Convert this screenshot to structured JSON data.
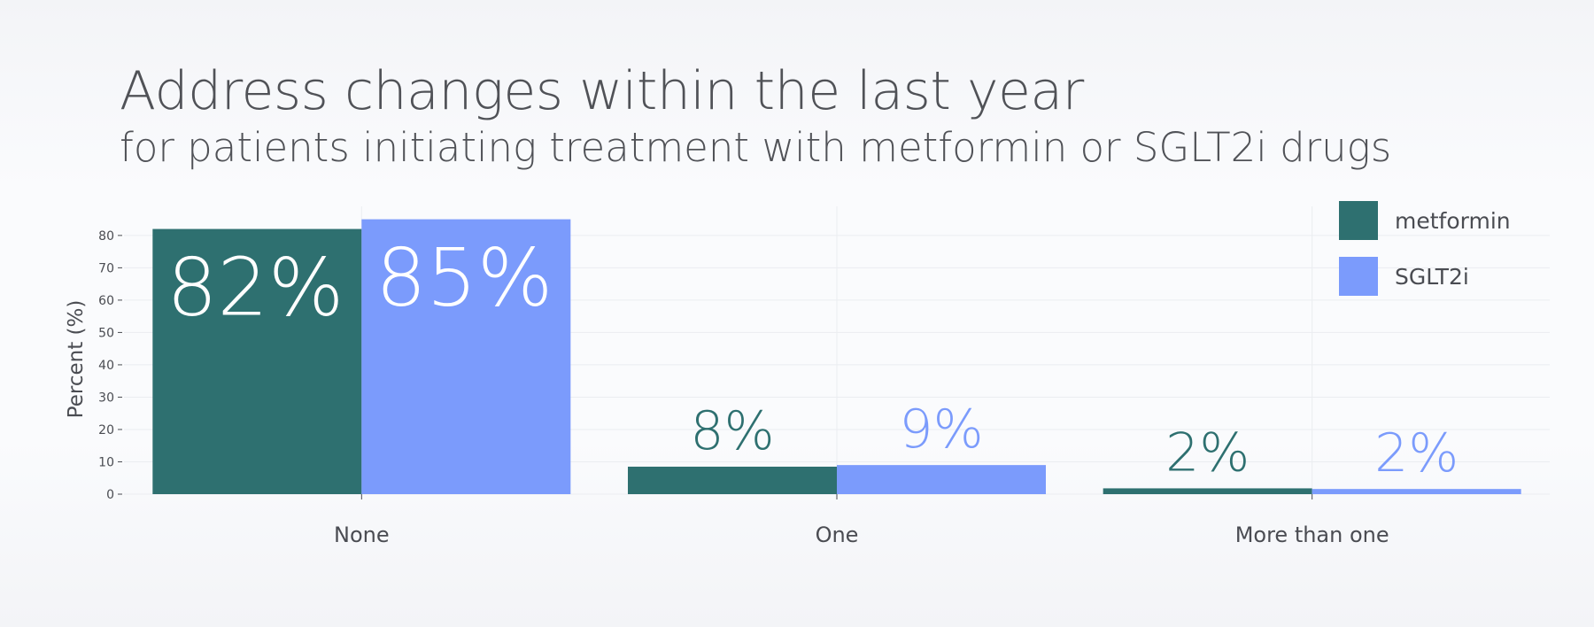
{
  "header": {
    "title": "Address changes within the last year",
    "subtitle": "for patients initiating treatment with metformin or SGLT2i drugs"
  },
  "colors": {
    "metformin": "#2e7070",
    "sglt2i": "#7b9bfc",
    "inside_label": "#ffffff",
    "grid": "#ebedf1",
    "axis_text": "#4a4c52"
  },
  "chart_data": {
    "type": "bar",
    "title": "Address changes within the last year",
    "subtitle": "for patients initiating treatment with metformin or SGLT2i drugs",
    "categories": [
      "None",
      "One",
      "More than one"
    ],
    "series": [
      {
        "name": "metformin",
        "values": [
          82,
          8.5,
          1.8
        ],
        "labels": [
          "82%",
          "8%",
          "2%"
        ]
      },
      {
        "name": "SGLT2i",
        "values": [
          85,
          9,
          1.6
        ],
        "labels": [
          "85%",
          "9%",
          "2%"
        ]
      }
    ],
    "xlabel": "",
    "ylabel": "Percent (%)",
    "yticks": [
      "0",
      "10",
      "20",
      "30",
      "40",
      "50",
      "60",
      "70",
      "80"
    ],
    "ylim": [
      0,
      89
    ],
    "grid": true,
    "legend": "top-right"
  }
}
